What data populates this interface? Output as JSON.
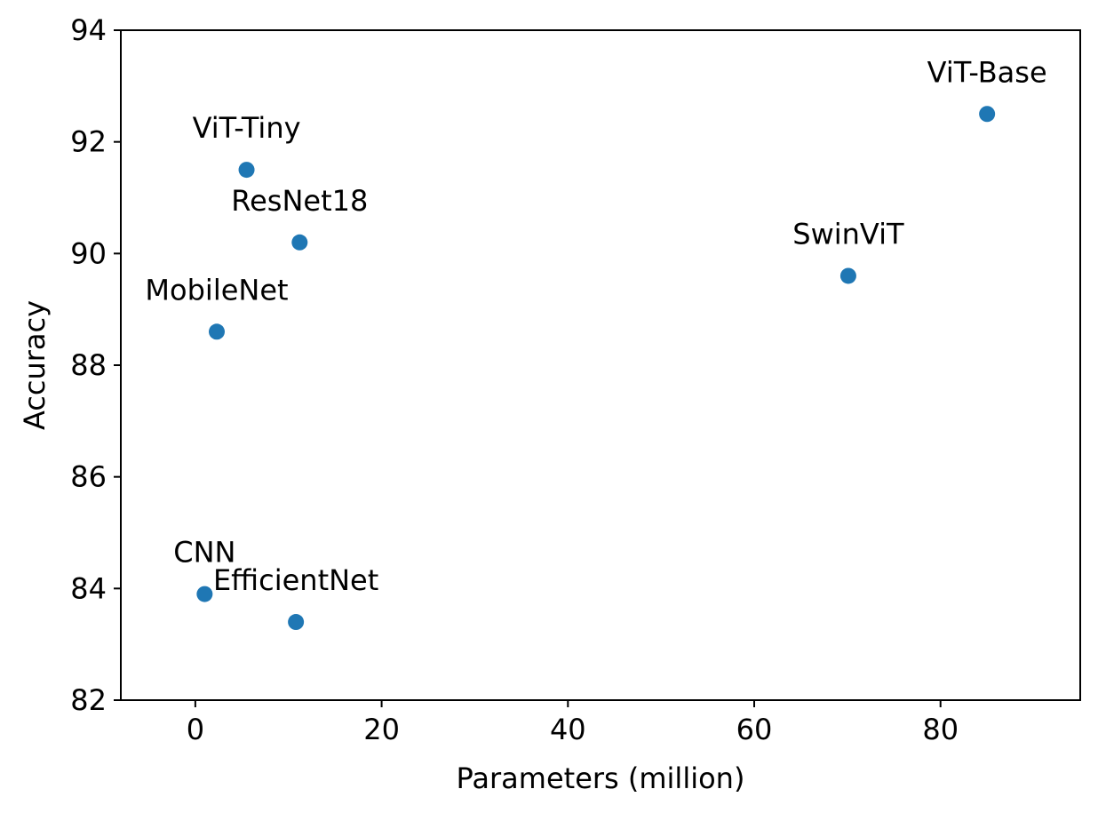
{
  "chart_data": {
    "type": "scatter",
    "title": "",
    "xlabel": "Parameters (million)",
    "ylabel": "Accuracy",
    "xlim": [
      -8,
      95
    ],
    "ylim": [
      82,
      94
    ],
    "xticks": [
      "0",
      "20",
      "40",
      "60",
      "80"
    ],
    "yticks": [
      "82",
      "84",
      "86",
      "88",
      "90",
      "92",
      "94"
    ],
    "grid": false,
    "point_color": "#1f77b4",
    "points": [
      {
        "label": "ViT-Base",
        "x": 85.0,
        "y": 92.5
      },
      {
        "label": "ViT-Tiny",
        "x": 5.5,
        "y": 91.5
      },
      {
        "label": "ResNet18",
        "x": 11.2,
        "y": 90.2
      },
      {
        "label": "SwinViT",
        "x": 70.1,
        "y": 89.6
      },
      {
        "label": "MobileNet",
        "x": 2.3,
        "y": 88.6
      },
      {
        "label": "CNN",
        "x": 1.0,
        "y": 83.9
      },
      {
        "label": "EfficientNet",
        "x": 10.8,
        "y": 83.4
      }
    ]
  }
}
